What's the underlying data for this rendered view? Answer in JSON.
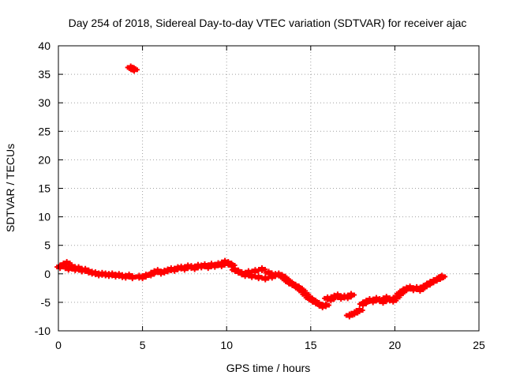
{
  "chart_data": {
    "type": "scatter",
    "title": "Day 254 of 2018, Sidereal Day-to-day VTEC variation (SDTVAR) for receiver ajac",
    "xlabel": "GPS time / hours",
    "ylabel": "SDTVAR / TECUs",
    "xlim": [
      0,
      25
    ],
    "ylim": [
      -10,
      40
    ],
    "x_ticks": [
      0,
      5,
      10,
      15,
      20,
      25
    ],
    "y_ticks": [
      -10,
      -5,
      0,
      5,
      10,
      15,
      20,
      25,
      30,
      35,
      40
    ],
    "grid": true,
    "marker_color": "#ff0000",
    "series": [
      {
        "name": "SDTVAR",
        "points": [
          [
            0.1,
            1.2
          ],
          [
            0.3,
            1.6
          ],
          [
            0.5,
            1.9
          ],
          [
            0.6,
            0.9
          ],
          [
            0.8,
            1.3
          ],
          [
            1.0,
            0.8
          ],
          [
            1.2,
            1.0
          ],
          [
            1.4,
            0.6
          ],
          [
            1.6,
            0.7
          ],
          [
            1.8,
            0.4
          ],
          [
            2.0,
            0.2
          ],
          [
            2.2,
            0.1
          ],
          [
            2.4,
            -0.1
          ],
          [
            2.6,
            0.0
          ],
          [
            2.8,
            -0.1
          ],
          [
            3.0,
            -0.2
          ],
          [
            3.2,
            -0.1
          ],
          [
            3.4,
            -0.3
          ],
          [
            3.6,
            -0.2
          ],
          [
            3.8,
            -0.4
          ],
          [
            4.0,
            -0.5
          ],
          [
            4.2,
            -0.3
          ],
          [
            4.4,
            -0.6
          ],
          [
            4.8,
            -0.5
          ],
          [
            5.0,
            -0.6
          ],
          [
            5.2,
            -0.3
          ],
          [
            5.5,
            -0.1
          ],
          [
            5.7,
            0.3
          ],
          [
            5.9,
            0.5
          ],
          [
            6.1,
            0.2
          ],
          [
            6.3,
            0.4
          ],
          [
            6.5,
            0.6
          ],
          [
            6.7,
            0.8
          ],
          [
            6.9,
            0.7
          ],
          [
            7.1,
            1.0
          ],
          [
            7.3,
            1.1
          ],
          [
            7.5,
            0.9
          ],
          [
            7.7,
            1.3
          ],
          [
            7.9,
            1.2
          ],
          [
            8.1,
            1.0
          ],
          [
            8.3,
            1.4
          ],
          [
            8.5,
            1.3
          ],
          [
            8.7,
            1.5
          ],
          [
            8.9,
            1.2
          ],
          [
            9.1,
            1.6
          ],
          [
            9.3,
            1.4
          ],
          [
            9.5,
            1.7
          ],
          [
            9.7,
            1.5
          ],
          [
            9.9,
            2.1
          ],
          [
            10.1,
            1.9
          ],
          [
            10.3,
            1.5
          ],
          [
            10.5,
            0.7
          ],
          [
            10.7,
            0.4
          ],
          [
            10.9,
            0.1
          ],
          [
            11.1,
            -0.2
          ],
          [
            11.3,
            0.3
          ],
          [
            11.5,
            -0.4
          ],
          [
            11.7,
            0.5
          ],
          [
            11.9,
            -0.6
          ],
          [
            12.1,
            0.8
          ],
          [
            12.3,
            -0.8
          ],
          [
            12.5,
            0.2
          ],
          [
            12.7,
            -0.5
          ],
          [
            12.9,
            -0.2
          ],
          [
            13.1,
            -0.1
          ],
          [
            13.3,
            -0.4
          ],
          [
            13.5,
            -0.9
          ],
          [
            13.7,
            -1.4
          ],
          [
            13.9,
            -1.8
          ],
          [
            14.1,
            -2.1
          ],
          [
            14.3,
            -2.5
          ],
          [
            14.5,
            -3.0
          ],
          [
            14.7,
            -3.6
          ],
          [
            14.9,
            -4.2
          ],
          [
            15.1,
            -4.6
          ],
          [
            15.3,
            -5.0
          ],
          [
            15.5,
            -5.3
          ],
          [
            15.7,
            -5.7
          ],
          [
            15.9,
            -5.5
          ],
          [
            16.0,
            -4.3
          ],
          [
            16.2,
            -4.5
          ],
          [
            16.4,
            -4.0
          ],
          [
            16.6,
            -3.8
          ],
          [
            16.8,
            -4.2
          ],
          [
            17.0,
            -4.0
          ],
          [
            17.2,
            -4.1
          ],
          [
            17.4,
            -3.7
          ],
          [
            17.3,
            -7.3
          ],
          [
            17.6,
            -6.9
          ],
          [
            17.9,
            -6.4
          ],
          [
            18.1,
            -5.3
          ],
          [
            18.3,
            -4.9
          ],
          [
            18.5,
            -4.6
          ],
          [
            18.7,
            -4.8
          ],
          [
            18.9,
            -4.4
          ],
          [
            19.1,
            -4.6
          ],
          [
            19.3,
            -4.9
          ],
          [
            19.5,
            -4.2
          ],
          [
            19.7,
            -4.5
          ],
          [
            19.9,
            -4.7
          ],
          [
            20.1,
            -4.1
          ],
          [
            20.3,
            -3.5
          ],
          [
            20.5,
            -3.0
          ],
          [
            20.7,
            -2.6
          ],
          [
            20.9,
            -2.4
          ],
          [
            21.1,
            -2.7
          ],
          [
            21.3,
            -2.5
          ],
          [
            21.5,
            -2.8
          ],
          [
            21.7,
            -2.3
          ],
          [
            21.9,
            -2.0
          ],
          [
            22.1,
            -1.6
          ],
          [
            22.3,
            -1.3
          ],
          [
            22.5,
            -1.0
          ],
          [
            22.7,
            -0.7
          ],
          [
            22.8,
            -0.5
          ],
          [
            4.3,
            36.2
          ],
          [
            4.4,
            36.0
          ],
          [
            4.5,
            35.8
          ]
        ]
      }
    ]
  }
}
